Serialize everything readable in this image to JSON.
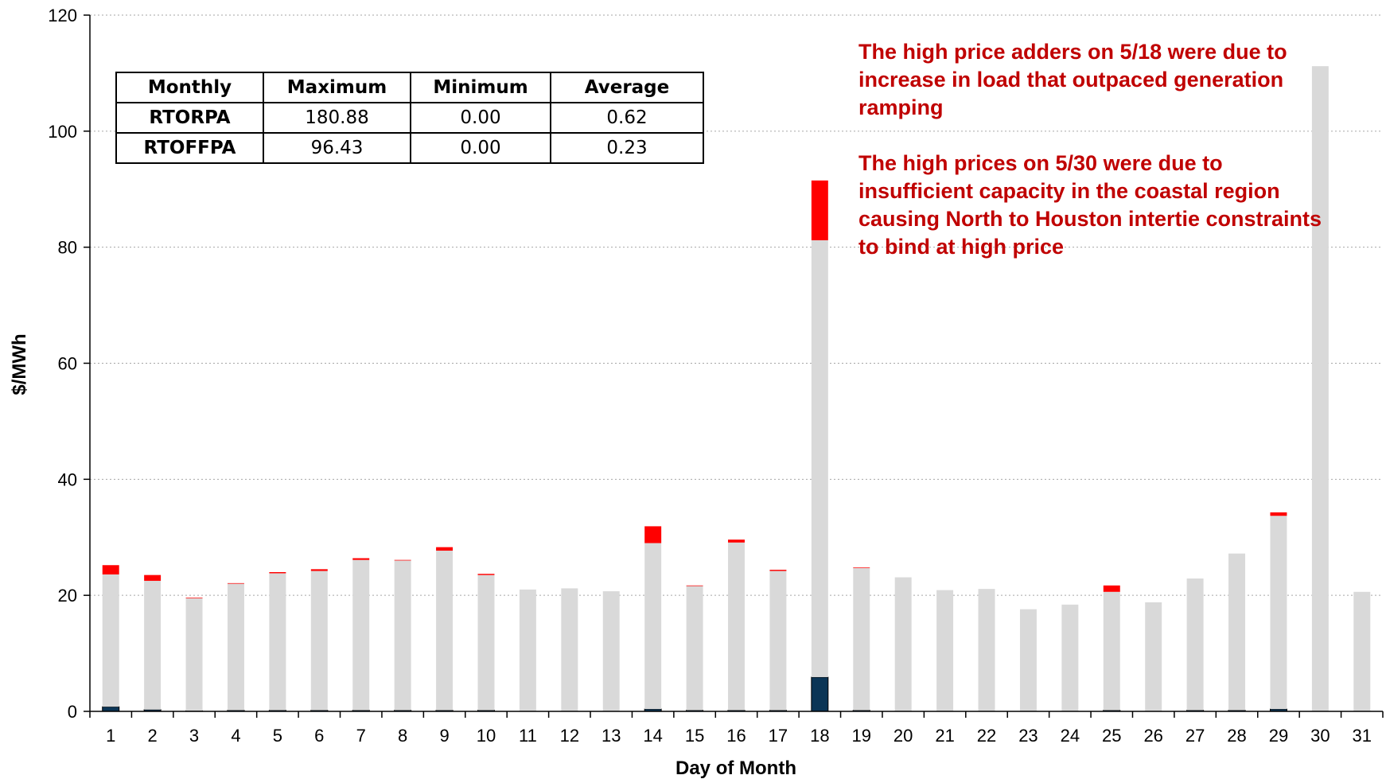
{
  "chart_data": {
    "type": "bar",
    "stacked": true,
    "xlabel": "Day of Month",
    "ylabel": "$/MWh",
    "ylim": [
      0,
      120
    ],
    "yticks": [
      0,
      20,
      40,
      60,
      80,
      100,
      120
    ],
    "grid": true,
    "categories": [
      "1",
      "2",
      "3",
      "4",
      "5",
      "6",
      "7",
      "8",
      "9",
      "10",
      "11",
      "12",
      "13",
      "14",
      "15",
      "16",
      "17",
      "18",
      "19",
      "20",
      "21",
      "22",
      "23",
      "24",
      "25",
      "26",
      "27",
      "28",
      "29",
      "30",
      "31"
    ],
    "series": [
      {
        "color": "#0b3556",
        "values": [
          0.8,
          0.3,
          0.1,
          0.2,
          0.2,
          0.2,
          0.2,
          0.2,
          0.2,
          0.2,
          0.0,
          0.0,
          0.0,
          0.4,
          0.2,
          0.2,
          0.2,
          5.9,
          0.2,
          0.0,
          0.0,
          0.0,
          0.0,
          0.0,
          0.2,
          0.0,
          0.2,
          0.2,
          0.4,
          0.0,
          0.0
        ]
      },
      {
        "color": "#d9d9d9",
        "values": [
          22.8,
          22.2,
          19.4,
          21.8,
          23.6,
          24.0,
          25.9,
          25.8,
          27.5,
          23.3,
          21.0,
          21.2,
          20.7,
          28.6,
          21.4,
          28.9,
          24.0,
          75.3,
          24.5,
          23.1,
          20.9,
          21.1,
          17.6,
          18.4,
          20.4,
          18.8,
          22.7,
          27.0,
          33.3,
          111.2,
          20.6
        ]
      },
      {
        "color": "#ff0000",
        "values": [
          1.6,
          1.0,
          0.1,
          0.1,
          0.2,
          0.3,
          0.3,
          0.1,
          0.6,
          0.2,
          0.0,
          0.0,
          0.0,
          2.9,
          0.1,
          0.5,
          0.2,
          10.3,
          0.1,
          0.0,
          0.0,
          0.0,
          0.0,
          0.0,
          1.1,
          0.0,
          0.0,
          0.0,
          0.6,
          0.0,
          0.0
        ]
      }
    ]
  },
  "annotations": [
    "The high price adders on 5/18 were due to increase in load that outpaced generation ramping",
    "The high prices on 5/30 were due to insufficient capacity in the coastal region causing North to Houston intertie constraints to bind at high price"
  ],
  "table": {
    "headers": [
      "Monthly",
      "Maximum",
      "Minimum",
      "Average"
    ],
    "rows": [
      [
        "RTORPA",
        "180.88",
        "0.00",
        "0.62"
      ],
      [
        "RTOFFPA",
        "96.43",
        "0.00",
        "0.23"
      ]
    ]
  }
}
